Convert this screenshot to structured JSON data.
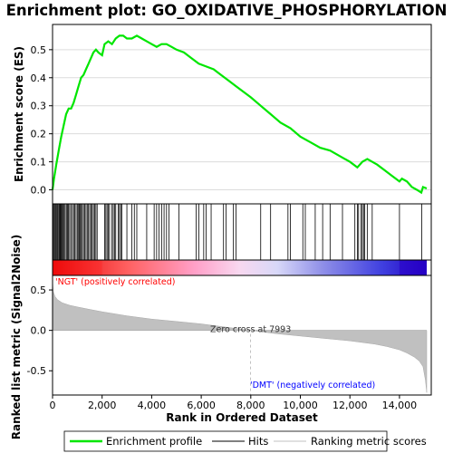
{
  "chart_data": {
    "type": "line",
    "title": "Enrichment plot: GO_OXIDATIVE_PHOSPHORYLATION",
    "top_panel": {
      "ylabel": "Enrichment score (ES)",
      "ylim": [
        -0.05,
        0.59
      ],
      "yticks": [
        "0.0",
        "0.1",
        "0.2",
        "0.3",
        "0.4",
        "0.5"
      ],
      "ytick_values": [
        0.0,
        0.1,
        0.2,
        0.3,
        0.4,
        0.5
      ],
      "grid": true,
      "series": [
        {
          "name": "Enrichment profile",
          "color": "#00e600",
          "x": [
            0,
            60,
            150,
            250,
            350,
            450,
            550,
            650,
            750,
            850,
            950,
            1050,
            1150,
            1250,
            1350,
            1450,
            1550,
            1650,
            1750,
            1850,
            2000,
            2100,
            2250,
            2400,
            2550,
            2700,
            2850,
            3000,
            3200,
            3400,
            3600,
            3800,
            4000,
            4200,
            4400,
            4600,
            4800,
            5000,
            5300,
            5600,
            5900,
            6200,
            6500,
            6800,
            7100,
            7400,
            7700,
            8000,
            8400,
            8800,
            9200,
            9600,
            10000,
            10400,
            10800,
            11200,
            11600,
            12000,
            12300,
            12500,
            12700,
            12900,
            13100,
            13400,
            13700,
            14000,
            14100,
            14300,
            14500,
            14700,
            14880,
            14950,
            15100
          ],
          "values": [
            0.0,
            0.04,
            0.09,
            0.14,
            0.19,
            0.23,
            0.27,
            0.29,
            0.29,
            0.31,
            0.34,
            0.37,
            0.4,
            0.41,
            0.43,
            0.45,
            0.47,
            0.49,
            0.5,
            0.49,
            0.48,
            0.52,
            0.53,
            0.52,
            0.54,
            0.55,
            0.55,
            0.54,
            0.54,
            0.55,
            0.54,
            0.53,
            0.52,
            0.51,
            0.52,
            0.52,
            0.51,
            0.5,
            0.49,
            0.47,
            0.45,
            0.44,
            0.43,
            0.41,
            0.39,
            0.37,
            0.35,
            0.33,
            0.3,
            0.27,
            0.24,
            0.22,
            0.19,
            0.17,
            0.15,
            0.14,
            0.12,
            0.1,
            0.08,
            0.1,
            0.11,
            0.1,
            0.09,
            0.07,
            0.05,
            0.03,
            0.04,
            0.03,
            0.01,
            0.0,
            -0.01,
            0.01,
            0.005
          ]
        }
      ]
    },
    "hits": {
      "label": "Hits",
      "color": "#000000",
      "positions": [
        20,
        60,
        90,
        130,
        160,
        200,
        230,
        270,
        300,
        330,
        360,
        400,
        430,
        470,
        510,
        560,
        600,
        640,
        690,
        740,
        800,
        850,
        900,
        950,
        1000,
        1050,
        1080,
        1120,
        1160,
        1200,
        1250,
        1300,
        1350,
        1400,
        1450,
        1500,
        1550,
        1600,
        1650,
        1700,
        1750,
        1800,
        2100,
        2150,
        2200,
        2250,
        2300,
        2400,
        2450,
        2500,
        2550,
        2650,
        2700,
        2750,
        2800,
        3000,
        3200,
        3300,
        3400,
        3800,
        4100,
        4200,
        4300,
        4400,
        4500,
        4600,
        4700,
        5100,
        5800,
        5900,
        6100,
        6200,
        6400,
        6900,
        7000,
        7300,
        7400,
        8400,
        8800,
        9500,
        9600,
        10100,
        10200,
        10600,
        10900,
        11200,
        11700,
        12200,
        12300,
        12350,
        12450,
        12500,
        12550,
        12600,
        12700,
        12900,
        14000,
        14900
      ]
    },
    "bottom_panel": {
      "ylabel": "Ranked list metric (Signal2Noise)",
      "xlabel": "Rank in Ordered Dataset",
      "xlim": [
        0,
        15100
      ],
      "ylim": [
        -0.8,
        0.68
      ],
      "xticks": [
        "0",
        "2,000",
        "4,000",
        "6,000",
        "8,000",
        "10,000",
        "12,000",
        "14,000"
      ],
      "xtick_values": [
        0,
        2000,
        4000,
        6000,
        8000,
        10000,
        12000,
        14000
      ],
      "yticks": [
        "0.5",
        "0.0",
        "-0.5"
      ],
      "ytick_values": [
        0.5,
        0.0,
        -0.5
      ],
      "fill_color": "#c0c0c0",
      "metric": {
        "x": [
          0,
          30,
          100,
          200,
          400,
          700,
          1000,
          1500,
          2000,
          3000,
          4000,
          5000,
          6000,
          7000,
          7993,
          9000,
          10000,
          11000,
          12000,
          13000,
          13500,
          14000,
          14300,
          14600,
          14800,
          14950,
          15050,
          15100
        ],
        "values": [
          0.62,
          0.48,
          0.42,
          0.38,
          0.34,
          0.31,
          0.29,
          0.26,
          0.23,
          0.18,
          0.14,
          0.11,
          0.08,
          0.04,
          0.0,
          -0.04,
          -0.07,
          -0.1,
          -0.13,
          -0.17,
          -0.2,
          -0.24,
          -0.28,
          -0.33,
          -0.38,
          -0.45,
          -0.62,
          -0.77
        ]
      },
      "zero_cross_text": "Zero cross at 7993",
      "zero_cross": 7993,
      "pos_label": "'NGT' (positively correlated)",
      "pos_color": "#ff0000",
      "neg_label": "'DMT' (negatively correlated)",
      "neg_color": "#0000ff"
    },
    "legend": {
      "placement": "bottom",
      "items": [
        {
          "label": "Enrichment profile",
          "color": "#00e600"
        },
        {
          "label": "Hits",
          "color": "#000000"
        },
        {
          "label": "Ranking metric scores",
          "color": "#c0c0c0"
        }
      ]
    }
  }
}
